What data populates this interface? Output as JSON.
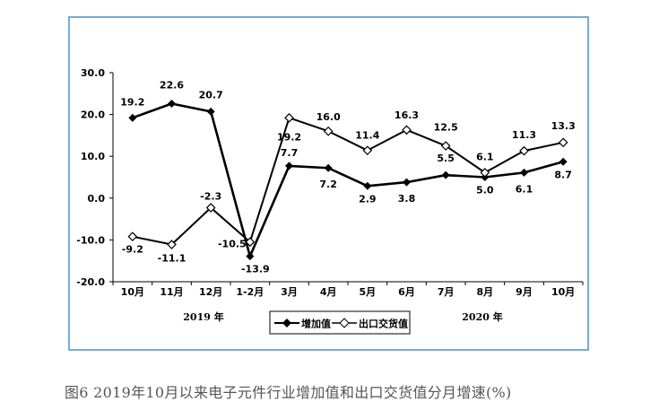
{
  "chart_data": {
    "type": "line",
    "categories": [
      "10月",
      "11月",
      "12月",
      "1-2月",
      "3月",
      "4月",
      "5月",
      "6月",
      "7月",
      "8月",
      "9月",
      "10月"
    ],
    "series": [
      {
        "name": "增加值",
        "values": [
          19.2,
          22.6,
          20.7,
          -13.9,
          7.7,
          7.2,
          2.9,
          3.8,
          5.5,
          5.0,
          6.1,
          8.7
        ],
        "labels": [
          "19.2",
          "22.6",
          "20.7",
          "-13.9",
          "7.7",
          "7.2",
          "2.9",
          "3.8",
          "5.5",
          "5.0",
          "6.1",
          "8.7"
        ],
        "marker": "filled-diamond",
        "color": "#000000"
      },
      {
        "name": "出口交货值",
        "values": [
          -9.2,
          -11.1,
          -2.3,
          -10.5,
          19.2,
          16.0,
          11.4,
          16.3,
          12.5,
          6.1,
          11.3,
          13.3
        ],
        "labels": [
          "-9.2",
          "-11.1",
          "-2.3",
          "-10.5",
          "19.2",
          "16.0",
          "11.4",
          "16.3",
          "12.5",
          "6.1",
          "11.3",
          "13.3"
        ],
        "marker": "hollow-diamond",
        "color": "#000000"
      }
    ],
    "year_labels": [
      "2019 年",
      "2020 年"
    ],
    "yticks": [
      "30.0",
      "20.0",
      "10.0",
      "0.0",
      "-10.0",
      "-20.0"
    ],
    "ylim": [
      -20,
      30
    ],
    "grid": false,
    "legend_position": "bottom-center"
  },
  "caption": "图6   2019年10月以来电子元件行业增加值和出口交货值分月增速(%)",
  "colors": {
    "frame": "#4a90c8",
    "line": "#000000",
    "caption": "#555555"
  }
}
